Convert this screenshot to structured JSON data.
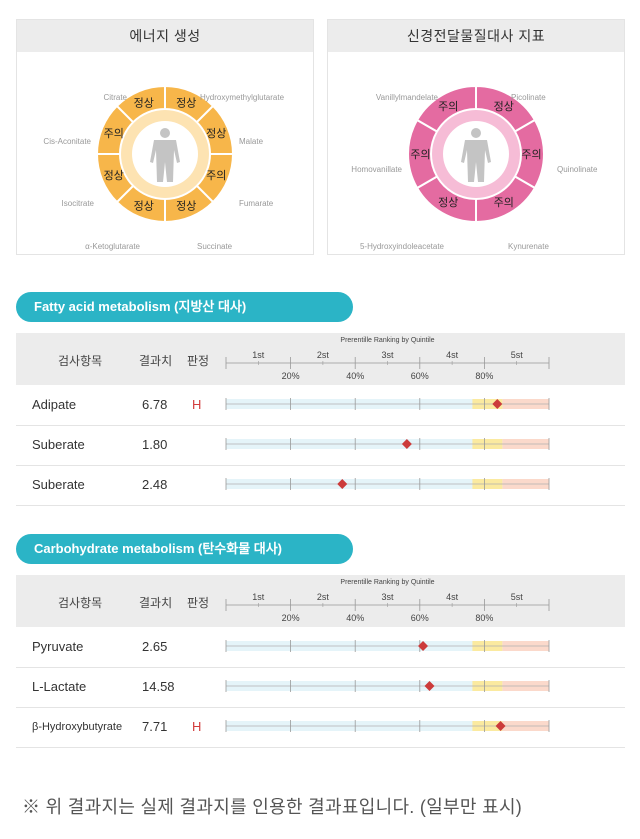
{
  "panels": {
    "energy": {
      "title": "에너지 생성",
      "fill": "#f7b64a",
      "segments": [
        {
          "status": "정상",
          "label": "Hydroxymethylglutarate"
        },
        {
          "status": "정상",
          "label": "Malate"
        },
        {
          "status": "주의",
          "label": "Fumarate"
        },
        {
          "status": "정상",
          "label": "Succinate"
        },
        {
          "status": "정상",
          "label": "α-Ketoglutarate"
        },
        {
          "status": "정상",
          "label": "Isocitrate"
        },
        {
          "status": "주의",
          "label": "Cis-Aconitate"
        },
        {
          "status": "정상",
          "label": "Citrate"
        }
      ]
    },
    "neuro": {
      "title": "신경전달물질대사 지표",
      "fill": "#e46ba1",
      "segments": [
        {
          "status": "정상",
          "label": "Picolinate"
        },
        {
          "status": "주의",
          "label": "Quinolinate"
        },
        {
          "status": "주의",
          "label": "Kynurenate"
        },
        {
          "status": "정상",
          "label": "5-Hydroxyindoleacetate"
        },
        {
          "status": "주의",
          "label": "Homovanillate"
        },
        {
          "status": "주의",
          "label": "Vanillylmandelate"
        }
      ]
    }
  },
  "sections": [
    {
      "title": "Fatty acid metabolism (지방산 대사)",
      "header": {
        "item": "검사항목",
        "result": "결과치",
        "judgement": "판정",
        "ranking_title": "Prerentille Ranking by Quintile",
        "quintiles": [
          "1st",
          "2st",
          "3st",
          "4st",
          "5st"
        ],
        "percentiles": [
          "20%",
          "40%",
          "60%",
          "80%"
        ]
      },
      "rows": [
        {
          "name": "Adipate",
          "value": "6.78",
          "flag": "H",
          "percentile": 84
        },
        {
          "name": "Suberate",
          "value": "1.80",
          "flag": "",
          "percentile": 56
        },
        {
          "name": "Suberate",
          "value": "2.48",
          "flag": "",
          "percentile": 36
        }
      ]
    },
    {
      "title": "Carbohydrate metabolism (탄수화물 대사)",
      "header": {
        "item": "검사항목",
        "result": "결과치",
        "judgement": "판정",
        "ranking_title": "Prerentille Ranking by Quintile",
        "quintiles": [
          "1st",
          "2st",
          "3st",
          "4st",
          "5st"
        ],
        "percentiles": [
          "20%",
          "40%",
          "60%",
          "80%"
        ]
      },
      "rows": [
        {
          "name": "Pyruvate",
          "value": "2.65",
          "flag": "",
          "percentile": 61
        },
        {
          "name": "L-Lactate",
          "value": "14.58",
          "flag": "",
          "percentile": 63
        },
        {
          "name": "β-Hydroxybutyrate",
          "value": "7.71",
          "flag": "H",
          "percentile": 85
        }
      ]
    }
  ],
  "note": "※  위 결과지는 실제 결과지를 인용한 결과표입니다. (일부만 표시)"
}
